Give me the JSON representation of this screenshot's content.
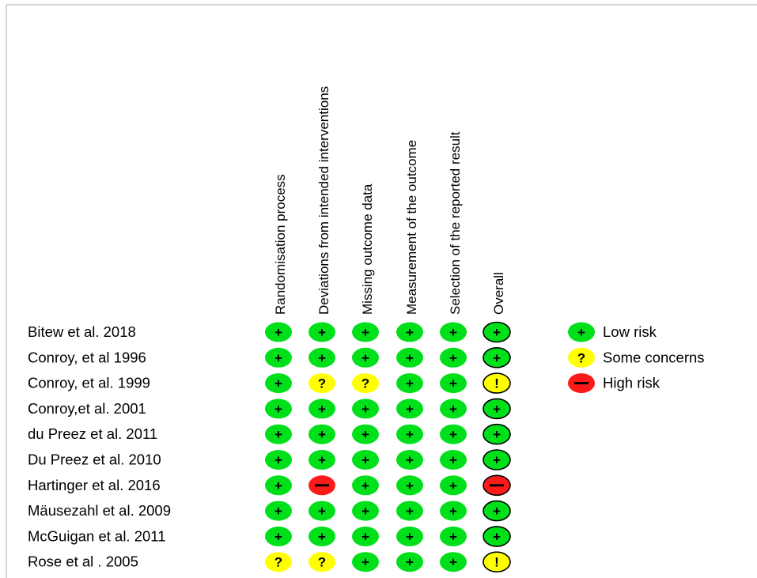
{
  "chart_data": {
    "type": "table",
    "columns": [
      "Randomisation process",
      "Deviations from intended interventions",
      "Missing outcome data",
      "Measurement of the outcome",
      "Selection of the reported result",
      "Overall"
    ],
    "studies": [
      {
        "name": "Bitew et al. 2018",
        "ratings": [
          "low",
          "low",
          "low",
          "low",
          "low",
          "low"
        ]
      },
      {
        "name": "Conroy, et al 1996",
        "ratings": [
          "low",
          "low",
          "low",
          "low",
          "low",
          "low"
        ]
      },
      {
        "name": "Conroy, et al. 1999",
        "ratings": [
          "low",
          "some",
          "some",
          "low",
          "low",
          "some"
        ]
      },
      {
        "name": "Conroy,et al. 2001",
        "ratings": [
          "low",
          "low",
          "low",
          "low",
          "low",
          "low"
        ]
      },
      {
        "name": "du Preez et al. 2011",
        "ratings": [
          "low",
          "low",
          "low",
          "low",
          "low",
          "low"
        ]
      },
      {
        "name": "Du Preez et al. 2010",
        "ratings": [
          "low",
          "low",
          "low",
          "low",
          "low",
          "low"
        ]
      },
      {
        "name": "Hartinger et al. 2016",
        "ratings": [
          "low",
          "high",
          "low",
          "low",
          "low",
          "high"
        ]
      },
      {
        "name": "Mäusezahl et al. 2009",
        "ratings": [
          "low",
          "low",
          "low",
          "low",
          "low",
          "low"
        ]
      },
      {
        "name": "McGuigan et al. 2011",
        "ratings": [
          "low",
          "low",
          "low",
          "low",
          "low",
          "low"
        ]
      },
      {
        "name": "Rose et al . 2005",
        "ratings": [
          "some",
          "some",
          "low",
          "low",
          "low",
          "some"
        ]
      }
    ],
    "legend": [
      {
        "key": "low",
        "label": "Low risk",
        "symbol": "+"
      },
      {
        "key": "some",
        "label": "Some concerns",
        "symbol": "?"
      },
      {
        "key": "high",
        "label": "High risk",
        "symbol": "—"
      }
    ],
    "overall_symbols": {
      "low": "+",
      "some": "!",
      "high": "—"
    },
    "colors": {
      "low": "#00e01a",
      "some": "#ffff00",
      "high": "#ff1a1a"
    }
  }
}
